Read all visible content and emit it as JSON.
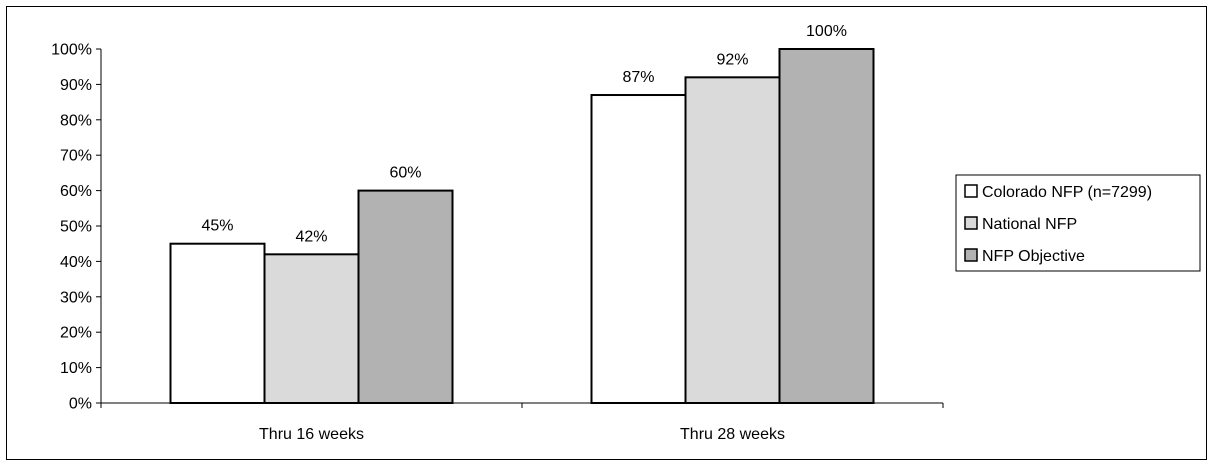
{
  "chart_data": {
    "type": "bar",
    "categories": [
      "Thru 16 weeks",
      "Thru 28 weeks"
    ],
    "series": [
      {
        "name": "Colorado NFP (n=7299)",
        "values": [
          45,
          87
        ],
        "labels": [
          "45%",
          "87%"
        ],
        "color": "#ffffff"
      },
      {
        "name": "National NFP",
        "values": [
          42,
          92
        ],
        "labels": [
          "42%",
          "92%"
        ],
        "color": "#dadada"
      },
      {
        "name": "NFP Objective",
        "values": [
          60,
          100
        ],
        "labels": [
          "60%",
          "100%"
        ],
        "color": "#b2b2b2"
      }
    ],
    "ylim": [
      0,
      100
    ],
    "yticks": [
      "0%",
      "10%",
      "20%",
      "30%",
      "40%",
      "50%",
      "60%",
      "70%",
      "80%",
      "90%",
      "100%"
    ],
    "grid": false,
    "legend_position": "right"
  }
}
